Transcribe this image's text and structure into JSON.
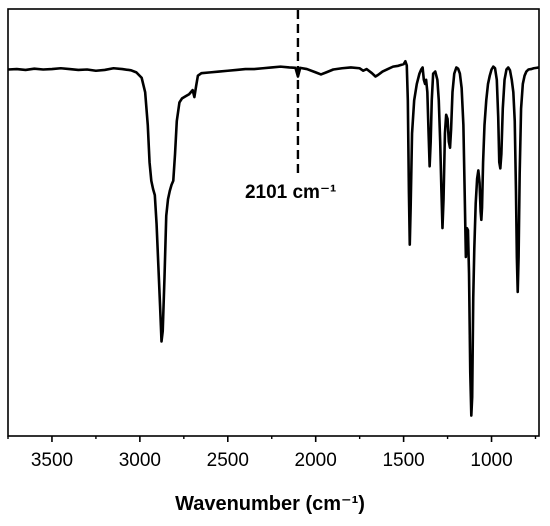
{
  "chart_data": {
    "type": "line",
    "title": "",
    "xlabel": "Wavenumber (cm⁻¹)",
    "ylabel": "",
    "xlim": [
      3750,
      730
    ],
    "x_reversed": true,
    "ylim": [
      0,
      100
    ],
    "y_ticks_shown": false,
    "grid": false,
    "legend": "none",
    "x_ticks": [
      3500,
      3000,
      2500,
      2000,
      1500,
      1000
    ],
    "x_tick_labels": [
      "3500",
      "3000",
      "2500",
      "2000",
      "1500",
      "1000"
    ],
    "annotation": {
      "text": "2101 cm⁻¹",
      "x": 2101,
      "style": "dashed vertical line"
    },
    "series": [
      {
        "color": "#000000",
        "points": [
          [
            3750,
            87.5
          ],
          [
            3700,
            87.6
          ],
          [
            3650,
            87.4
          ],
          [
            3600,
            87.7
          ],
          [
            3550,
            87.5
          ],
          [
            3500,
            87.6
          ],
          [
            3450,
            87.8
          ],
          [
            3400,
            87.6
          ],
          [
            3350,
            87.4
          ],
          [
            3300,
            87.5
          ],
          [
            3250,
            87.2
          ],
          [
            3200,
            87.4
          ],
          [
            3150,
            87.8
          ],
          [
            3100,
            87.6
          ],
          [
            3050,
            87.3
          ],
          [
            3020,
            86.8
          ],
          [
            2990,
            85.5
          ],
          [
            2970,
            82.0
          ],
          [
            2955,
            74.0
          ],
          [
            2945,
            65.0
          ],
          [
            2935,
            60.5
          ],
          [
            2925,
            58.5
          ],
          [
            2915,
            57.0
          ],
          [
            2905,
            50.0
          ],
          [
            2895,
            40.0
          ],
          [
            2885,
            30.0
          ],
          [
            2877,
            21.5
          ],
          [
            2870,
            24.0
          ],
          [
            2860,
            37.0
          ],
          [
            2850,
            52.0
          ],
          [
            2840,
            56.0
          ],
          [
            2830,
            58.0
          ],
          [
            2820,
            59.5
          ],
          [
            2810,
            60.5
          ],
          [
            2800,
            67.0
          ],
          [
            2790,
            75.0
          ],
          [
            2775,
            79.5
          ],
          [
            2760,
            80.5
          ],
          [
            2740,
            81.0
          ],
          [
            2720,
            81.5
          ],
          [
            2700,
            82.5
          ],
          [
            2690,
            80.8
          ],
          [
            2680,
            83.5
          ],
          [
            2670,
            86.0
          ],
          [
            2650,
            86.6
          ],
          [
            2600,
            86.8
          ],
          [
            2550,
            87.0
          ],
          [
            2500,
            87.2
          ],
          [
            2450,
            87.4
          ],
          [
            2400,
            87.6
          ],
          [
            2350,
            87.6
          ],
          [
            2300,
            87.8
          ],
          [
            2250,
            88.0
          ],
          [
            2200,
            88.2
          ],
          [
            2150,
            88.0
          ],
          [
            2115,
            87.9
          ],
          [
            2101,
            85.8
          ],
          [
            2088,
            87.9
          ],
          [
            2050,
            87.6
          ],
          [
            2000,
            86.8
          ],
          [
            1970,
            86.3
          ],
          [
            1940,
            86.8
          ],
          [
            1900,
            87.5
          ],
          [
            1850,
            87.8
          ],
          [
            1800,
            88.0
          ],
          [
            1750,
            87.8
          ],
          [
            1730,
            87.2
          ],
          [
            1710,
            87.6
          ],
          [
            1680,
            86.6
          ],
          [
            1660,
            85.8
          ],
          [
            1645,
            86.2
          ],
          [
            1620,
            87.0
          ],
          [
            1590,
            87.6
          ],
          [
            1560,
            88.2
          ],
          [
            1530,
            88.4
          ],
          [
            1500,
            88.8
          ],
          [
            1490,
            89.5
          ],
          [
            1482,
            88.5
          ],
          [
            1476,
            80.0
          ],
          [
            1470,
            58.0
          ],
          [
            1465,
            45.0
          ],
          [
            1460,
            54.0
          ],
          [
            1452,
            72.0
          ],
          [
            1440,
            80.0
          ],
          [
            1425,
            84.0
          ],
          [
            1410,
            86.5
          ],
          [
            1400,
            87.5
          ],
          [
            1392,
            88.0
          ],
          [
            1385,
            85.0
          ],
          [
            1378,
            84.0
          ],
          [
            1372,
            85.0
          ],
          [
            1365,
            82.0
          ],
          [
            1358,
            72.0
          ],
          [
            1352,
            64.0
          ],
          [
            1346,
            70.0
          ],
          [
            1340,
            80.0
          ],
          [
            1332,
            86.5
          ],
          [
            1320,
            87.0
          ],
          [
            1308,
            85.0
          ],
          [
            1300,
            80.0
          ],
          [
            1292,
            70.0
          ],
          [
            1285,
            58.0
          ],
          [
            1279,
            49.0
          ],
          [
            1273,
            56.0
          ],
          [
            1265,
            72.0
          ],
          [
            1258,
            76.5
          ],
          [
            1250,
            75.5
          ],
          [
            1243,
            70.0
          ],
          [
            1236,
            68.5
          ],
          [
            1230,
            73.0
          ],
          [
            1222,
            82.0
          ],
          [
            1212,
            86.5
          ],
          [
            1200,
            88.0
          ],
          [
            1190,
            87.7
          ],
          [
            1180,
            86.5
          ],
          [
            1170,
            83.0
          ],
          [
            1160,
            74.0
          ],
          [
            1152,
            56.0
          ],
          [
            1146,
            42.0
          ],
          [
            1140,
            49.0
          ],
          [
            1134,
            48.5
          ],
          [
            1128,
            38.0
          ],
          [
            1121,
            14.0
          ],
          [
            1115,
            3.5
          ],
          [
            1110,
            8.0
          ],
          [
            1104,
            32.0
          ],
          [
            1098,
            44.0
          ],
          [
            1090,
            55.0
          ],
          [
            1082,
            61.0
          ],
          [
            1075,
            63.0
          ],
          [
            1068,
            60.0
          ],
          [
            1062,
            53.0
          ],
          [
            1058,
            51.0
          ],
          [
            1054,
            54.0
          ],
          [
            1048,
            65.0
          ],
          [
            1040,
            74.0
          ],
          [
            1030,
            80.0
          ],
          [
            1020,
            84.0
          ],
          [
            1010,
            86.0
          ],
          [
            1000,
            87.5
          ],
          [
            990,
            88.2
          ],
          [
            980,
            87.8
          ],
          [
            970,
            85.0
          ],
          [
            962,
            76.0
          ],
          [
            956,
            65.0
          ],
          [
            950,
            63.5
          ],
          [
            944,
            67.0
          ],
          [
            936,
            78.0
          ],
          [
            926,
            85.0
          ],
          [
            915,
            87.5
          ],
          [
            905,
            88.0
          ],
          [
            895,
            87.3
          ],
          [
            885,
            85.0
          ],
          [
            876,
            82.0
          ],
          [
            868,
            75.0
          ],
          [
            861,
            58.0
          ],
          [
            856,
            42.0
          ],
          [
            851,
            33.5
          ],
          [
            846,
            42.0
          ],
          [
            840,
            62.0
          ],
          [
            832,
            78.0
          ],
          [
            822,
            84.0
          ],
          [
            812,
            86.0
          ],
          [
            802,
            87.0
          ],
          [
            790,
            87.5
          ],
          [
            775,
            87.6
          ],
          [
            760,
            87.8
          ],
          [
            745,
            87.9
          ],
          [
            730,
            88.0
          ]
        ]
      }
    ]
  }
}
